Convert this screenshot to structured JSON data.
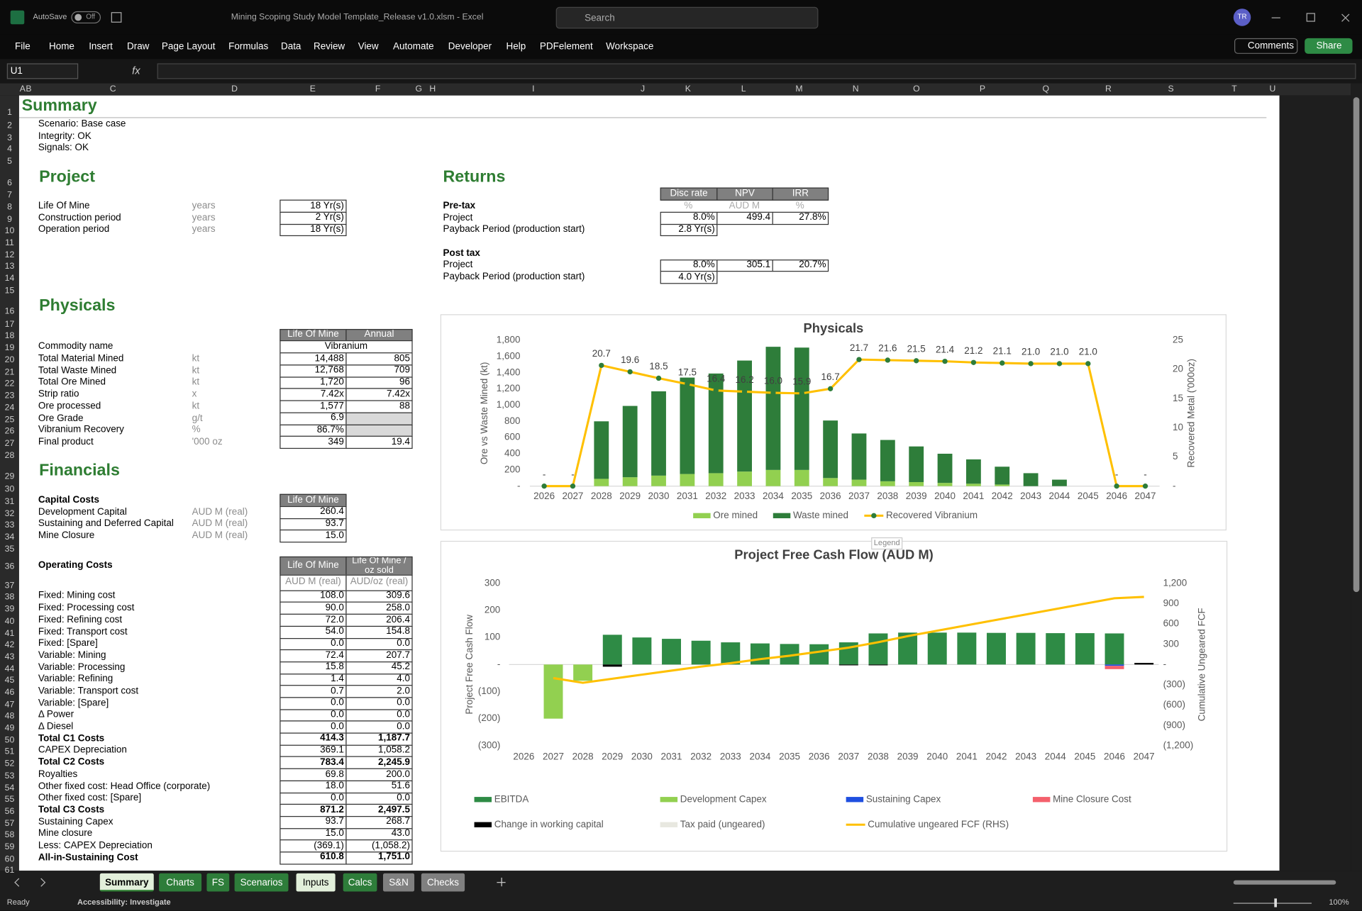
{
  "window": {
    "autosave": "AutoSave",
    "autosave_state": "Off",
    "file_title": "Mining Scoping Study Model Template_Release v1.0.xlsm  -  Excel",
    "search": "Search",
    "user": "TR"
  },
  "ribbon": {
    "tabs": [
      "File",
      "Home",
      "Insert",
      "Draw",
      "Page Layout",
      "Formulas",
      "Data",
      "Review",
      "View",
      "Automate",
      "Developer",
      "Help",
      "PDFelement",
      "Workspace"
    ],
    "comments": "Comments",
    "share": "Share"
  },
  "formula_bar": {
    "name_box": "U1",
    "fx": "fx"
  },
  "grid": {
    "columns": [
      "A",
      "B",
      "C",
      "D",
      "E",
      "F",
      "G",
      "H",
      "I",
      "J",
      "K",
      "L",
      "M",
      "N",
      "O",
      "P",
      "Q",
      "R",
      "S",
      "T",
      "U"
    ],
    "rows": [
      1,
      2,
      3,
      4,
      5,
      6,
      7,
      8,
      9,
      10,
      11,
      12,
      13,
      14,
      15,
      16,
      17,
      18,
      19,
      20,
      21,
      22,
      23,
      24,
      25,
      26,
      27,
      28,
      29,
      30,
      31,
      32,
      33,
      34,
      35,
      36,
      37,
      38,
      39,
      40,
      41,
      42,
      43,
      44,
      45,
      46,
      47,
      48,
      49,
      50,
      51,
      52,
      53,
      54,
      55,
      56,
      57,
      58,
      59,
      60,
      61
    ]
  },
  "sheet": {
    "title": "Summary",
    "status_lines": [
      "Scenario: Base case",
      "Integrity: OK",
      "Signals: OK"
    ],
    "project": {
      "heading": "Project",
      "rows": [
        {
          "label": "Life Of Mine",
          "unit": "years",
          "value": "18 Yr(s)"
        },
        {
          "label": "Construction period",
          "unit": "years",
          "value": "2 Yr(s)"
        },
        {
          "label": "Operation period",
          "unit": "years",
          "value": "18 Yr(s)"
        }
      ]
    },
    "physicals": {
      "heading": "Physicals",
      "headers": [
        "Life Of Mine",
        "Annual"
      ],
      "commodity_label": "Commodity name",
      "commodity": "Vibranium",
      "rows": [
        {
          "label": "Total Material Mined",
          "unit": "kt",
          "lom": "14,488",
          "annual": "805"
        },
        {
          "label": "Total Waste Mined",
          "unit": "kt",
          "lom": "12,768",
          "annual": "709"
        },
        {
          "label": "Total Ore Mined",
          "unit": "kt",
          "lom": "1,720",
          "annual": "96"
        },
        {
          "label": "Strip ratio",
          "unit": "x",
          "lom": "7.42x",
          "annual": "7.42x"
        },
        {
          "label": "Ore processed",
          "unit": "kt",
          "lom": "1,577",
          "annual": "88"
        },
        {
          "label": "Ore Grade",
          "unit": "g/t",
          "lom": "6.9",
          "annual": null
        },
        {
          "label": "Vibranium Recovery",
          "unit": "%",
          "lom": "86.7%",
          "annual": null
        },
        {
          "label": "Final product",
          "unit": "'000 oz",
          "lom": "349",
          "annual": "19.4"
        }
      ]
    },
    "financials": {
      "heading": "Financials",
      "capital": {
        "label": "Capital Costs",
        "header": "Life Of Mine",
        "rows": [
          {
            "label": "Development Capital",
            "unit": "AUD M (real)",
            "value": "260.4"
          },
          {
            "label": "Sustaining and Deferred Capital",
            "unit": "AUD M (real)",
            "value": "93.7"
          },
          {
            "label": "Mine Closure",
            "unit": "AUD M (real)",
            "value": "15.0"
          }
        ]
      },
      "operating": {
        "label": "Operating Costs",
        "headers": [
          "Life Of Mine",
          "Life Of Mine / oz sold"
        ],
        "units": [
          "AUD M (real)",
          "AUD/oz (real)"
        ],
        "rows": [
          {
            "label": "Fixed: Mining cost",
            "lom": "108.0",
            "per_oz": "309.6"
          },
          {
            "label": "Fixed: Processing cost",
            "lom": "90.0",
            "per_oz": "258.0"
          },
          {
            "label": "Fixed: Refining cost",
            "lom": "72.0",
            "per_oz": "206.4"
          },
          {
            "label": "Fixed: Transport cost",
            "lom": "54.0",
            "per_oz": "154.8"
          },
          {
            "label": "Fixed: [Spare]",
            "lom": "0.0",
            "per_oz": "0.0"
          },
          {
            "label": "Variable: Mining",
            "lom": "72.4",
            "per_oz": "207.7"
          },
          {
            "label": "Variable: Processing",
            "lom": "15.8",
            "per_oz": "45.2"
          },
          {
            "label": "Variable: Refining",
            "lom": "1.4",
            "per_oz": "4.0"
          },
          {
            "label": "Variable: Transport cost",
            "lom": "0.7",
            "per_oz": "2.0"
          },
          {
            "label": "Variable: [Spare]",
            "lom": "0.0",
            "per_oz": "0.0"
          },
          {
            "label": "Δ Power",
            "lom": "0.0",
            "per_oz": "0.0"
          },
          {
            "label": "Δ Diesel",
            "lom": "0.0",
            "per_oz": "0.0"
          },
          {
            "label": "Total C1 Costs",
            "lom": "414.3",
            "per_oz": "1,187.7",
            "bold": true
          },
          {
            "label": "CAPEX Depreciation",
            "lom": "369.1",
            "per_oz": "1,058.2"
          },
          {
            "label": "Total C2 Costs",
            "lom": "783.4",
            "per_oz": "2,245.9",
            "bold": true
          },
          {
            "label": "Royalties",
            "lom": "69.8",
            "per_oz": "200.0"
          },
          {
            "label": "Other fixed cost: Head Office (corporate)",
            "lom": "18.0",
            "per_oz": "51.6"
          },
          {
            "label": "Other fixed cost: [Spare]",
            "lom": "0.0",
            "per_oz": "0.0"
          },
          {
            "label": "Total C3 Costs",
            "lom": "871.2",
            "per_oz": "2,497.5",
            "bold": true
          },
          {
            "label": "Sustaining Capex",
            "lom": "93.7",
            "per_oz": "268.7"
          },
          {
            "label": "Mine closure",
            "lom": "15.0",
            "per_oz": "43.0"
          },
          {
            "label": "Less: CAPEX Depreciation",
            "lom": "(369.1)",
            "per_oz": "(1,058.2)"
          },
          {
            "label": "All-in-Sustaining Cost",
            "lom": "610.8",
            "per_oz": "1,751.0",
            "bold": true
          }
        ]
      }
    },
    "returns": {
      "heading": "Returns",
      "headers": [
        "Disc rate",
        "NPV",
        "IRR"
      ],
      "units": [
        "%",
        "AUD M",
        "%"
      ],
      "pre_tax": {
        "label": "Pre-tax",
        "project_label": "Project",
        "values": [
          "8.0%",
          "499.4",
          "27.8%"
        ],
        "payback_label": "Payback Period (production start)",
        "payback": "2.8 Yr(s)"
      },
      "post_tax": {
        "label": "Post tax",
        "project_label": "Project",
        "values": [
          "8.0%",
          "305.1",
          "20.7%"
        ],
        "payback_label": "Payback Period (production start)",
        "payback": "4.0 Yr(s)"
      }
    }
  },
  "legend_tooltip": "Legend",
  "chart_data": [
    {
      "type": "bar",
      "stacked": true,
      "title": "Physicals",
      "y_label": "Ore vs Waste Mined (kt)",
      "y2_label": "Recovered Metal ('000oz)",
      "legend": "bottom",
      "categories": [
        "2026",
        "2027",
        "2028",
        "2029",
        "2030",
        "2031",
        "2032",
        "2033",
        "2034",
        "2035",
        "2036",
        "2037",
        "2038",
        "2039",
        "2040",
        "2041",
        "2042",
        "2043",
        "2044",
        "2045",
        "2046",
        "2047"
      ],
      "series": [
        {
          "name": "Ore mined",
          "color": "#92d050",
          "values": [
            0,
            0,
            90,
            110,
            130,
            150,
            160,
            180,
            200,
            200,
            100,
            80,
            60,
            50,
            40,
            30,
            20,
            0,
            0,
            0,
            0,
            0
          ]
        },
        {
          "name": "Waste mined",
          "color": "#2e7d3a",
          "values": [
            0,
            0,
            710,
            880,
            1040,
            1190,
            1230,
            1370,
            1520,
            1510,
            710,
            570,
            510,
            440,
            360,
            300,
            220,
            160,
            80,
            0,
            0,
            0
          ]
        },
        {
          "name": "Recovered Vibranium",
          "type": "line",
          "axis": "y2",
          "color": "#ffc000",
          "marker_color": "#2e7d3a",
          "values": [
            0,
            0,
            20.7,
            19.6,
            18.5,
            17.5,
            16.4,
            16.2,
            16.0,
            15.9,
            16.7,
            21.7,
            21.6,
            21.5,
            21.4,
            21.2,
            21.1,
            21.0,
            21.0,
            21.0,
            0,
            0
          ],
          "value_labels": [
            "-",
            "-",
            "20.7",
            "19.6",
            "18.5",
            "17.5",
            "16.4",
            "16.2",
            "16.0",
            "15.9",
            "16.7",
            "21.7",
            "21.6",
            "21.5",
            "21.4",
            "21.2",
            "21.1",
            "21.0",
            "21.0",
            "21.0",
            "-",
            "-"
          ]
        }
      ],
      "ylim": [
        0,
        1800
      ],
      "yticks": [
        {
          "value": 0,
          "label": "-"
        },
        200,
        400,
        600,
        800,
        {
          "value": 1000,
          "label": "1,000"
        },
        {
          "value": 1200,
          "label": "1,200"
        },
        {
          "value": 1400,
          "label": "1,400"
        },
        {
          "value": 1600,
          "label": "1,600"
        },
        {
          "value": 1800,
          "label": "1,800"
        }
      ],
      "y2lim": [
        0,
        25
      ],
      "y2ticks": [
        {
          "value": 0,
          "label": "-"
        },
        5,
        10,
        15,
        20,
        25
      ]
    },
    {
      "type": "bar",
      "stacked": true,
      "title": "Project Free Cash Flow (AUD M)",
      "y_label": "Project Free Cash Flow",
      "y2_label": "Cumulative Ungeared FCF",
      "legend": "bottom",
      "categories": [
        "2026",
        "2027",
        "2028",
        "2029",
        "2030",
        "2031",
        "2032",
        "2033",
        "2034",
        "2035",
        "2036",
        "2037",
        "2038",
        "2039",
        "2040",
        "2041",
        "2042",
        "2043",
        "2044",
        "2045",
        "2046",
        "2047"
      ],
      "series": [
        {
          "name": "EBITDA",
          "color": "#2e8b45",
          "values": [
            0,
            0,
            0,
            110,
            100,
            95,
            88,
            82,
            78,
            76,
            75,
            82,
            115,
            118,
            118,
            118,
            117,
            117,
            116,
            116,
            115,
            0
          ]
        },
        {
          "name": "Development Capex",
          "color": "#92d050",
          "values": [
            0,
            -200,
            -60,
            0,
            0,
            0,
            0,
            0,
            0,
            0,
            0,
            0,
            0,
            0,
            0,
            0,
            0,
            0,
            0,
            0,
            0,
            0
          ]
        },
        {
          "name": "Sustaining Capex",
          "color": "#1f4fe0",
          "values": [
            0,
            0,
            0,
            0,
            0,
            0,
            0,
            0,
            0,
            0,
            0,
            0,
            0,
            0,
            0,
            0,
            0,
            0,
            0,
            0,
            -5,
            0
          ]
        },
        {
          "name": "Mine Closure Cost",
          "color": "#f4606c",
          "values": [
            0,
            0,
            0,
            0,
            0,
            0,
            0,
            0,
            0,
            0,
            0,
            0,
            0,
            0,
            0,
            0,
            0,
            0,
            0,
            0,
            -12,
            0
          ]
        },
        {
          "name": "Change in working capital",
          "color": "#000000",
          "values": [
            0,
            0,
            0,
            -8,
            0,
            0,
            0,
            0,
            0,
            0,
            0,
            -3,
            -3,
            0,
            0,
            0,
            0,
            0,
            0,
            0,
            0,
            6
          ]
        },
        {
          "name": "Tax paid (ungeared)",
          "color": "#e8e8e0",
          "values": [
            0,
            0,
            0,
            0,
            0,
            0,
            0,
            0,
            0,
            0,
            0,
            0,
            0,
            0,
            0,
            0,
            0,
            0,
            0,
            0,
            0,
            0
          ]
        },
        {
          "name": "Cumulative ungeared FCF (RHS)",
          "type": "line",
          "axis": "y2",
          "color": "#ffc000",
          "values": [
            null,
            -200,
            -270,
            -210,
            -150,
            -90,
            -30,
            20,
            80,
            130,
            190,
            250,
            330,
            420,
            500,
            580,
            660,
            740,
            820,
            900,
            980,
            1000
          ]
        }
      ],
      "ylim": [
        -300,
        300
      ],
      "yticks": [
        {
          "value": -300,
          "label": "(300)"
        },
        {
          "value": -200,
          "label": "(200)"
        },
        {
          "value": -100,
          "label": "(100)"
        },
        {
          "value": 0,
          "label": "-"
        },
        100,
        200,
        300
      ],
      "y2lim": [
        -1200,
        1200
      ],
      "y2ticks": [
        {
          "value": -1200,
          "label": "(1,200)"
        },
        {
          "value": -900,
          "label": "(900)"
        },
        {
          "value": -600,
          "label": "(600)"
        },
        {
          "value": -300,
          "label": "(300)"
        },
        {
          "value": 0,
          "label": "-"
        },
        300,
        600,
        900,
        {
          "value": 1200,
          "label": "1,200"
        }
      ]
    }
  ],
  "sheet_tabs": [
    {
      "label": "Summary",
      "color": "#e2efda",
      "text_color": "#000000",
      "active": true
    },
    {
      "label": "Charts",
      "color": "#2e7d3a",
      "text_color": "#ffffff"
    },
    {
      "label": "FS",
      "color": "#2e7d3a",
      "text_color": "#ffffff"
    },
    {
      "label": "Scenarios",
      "color": "#2e7d3a",
      "text_color": "#ffffff"
    },
    {
      "label": "Inputs",
      "color": "#e2efda",
      "text_color": "#000000"
    },
    {
      "label": "Calcs",
      "color": "#2e7d3a",
      "text_color": "#ffffff"
    },
    {
      "label": "S&N",
      "color": "#808080",
      "text_color": "#ffffff"
    },
    {
      "label": "Checks",
      "color": "#808080",
      "text_color": "#ffffff"
    }
  ],
  "status_bar": {
    "ready": "Ready",
    "accessibility": "Accessibility: Investigate",
    "zoom": "100%"
  }
}
